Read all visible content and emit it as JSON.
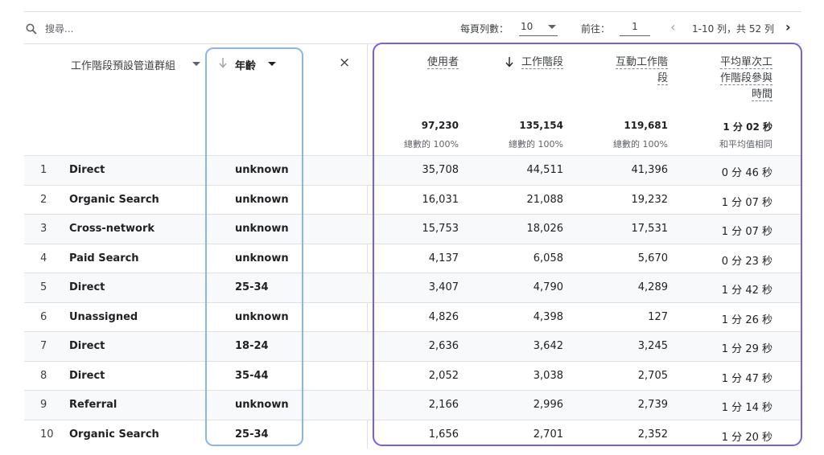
{
  "toolbar": {
    "search_placeholder": "搜尋...",
    "rows_per_page_label": "每頁列數：",
    "rows_per_page_value": "10",
    "goto_label": "前往：",
    "goto_value": "1",
    "range_text": "1-10 列，共 52 列"
  },
  "headers": {
    "channel": "工作階段預設管道群組",
    "age": "年齡",
    "close_symbol": "×",
    "users": "使用者",
    "sessions": "工作階段",
    "engaged_sessions_line1": "互動工作階",
    "engaged_sessions_line2": "段",
    "avg_time_line1": "平均單次工",
    "avg_time_line2": "作階段參與",
    "avg_time_line3": "時間"
  },
  "totals": {
    "users": "97,230",
    "users_sub": "總數的 100%",
    "sessions": "135,154",
    "sessions_sub": "總數的 100%",
    "engaged": "119,681",
    "engaged_sub": "總數的 100%",
    "avg_time": "1 分 02 秒",
    "avg_time_sub": "和平均值相同"
  },
  "rows": [
    {
      "idx": "1",
      "channel": "Direct",
      "age": "unknown",
      "users": "35,708",
      "sessions": "44,511",
      "engaged": "41,396",
      "time": "0 分 46 秒"
    },
    {
      "idx": "2",
      "channel": "Organic Search",
      "age": "unknown",
      "users": "16,031",
      "sessions": "21,088",
      "engaged": "19,232",
      "time": "1 分 07 秒"
    },
    {
      "idx": "3",
      "channel": "Cross-network",
      "age": "unknown",
      "users": "15,753",
      "sessions": "18,026",
      "engaged": "17,531",
      "time": "1 分 07 秒"
    },
    {
      "idx": "4",
      "channel": "Paid Search",
      "age": "unknown",
      "users": "4,137",
      "sessions": "6,058",
      "engaged": "5,670",
      "time": "0 分 23 秒"
    },
    {
      "idx": "5",
      "channel": "Direct",
      "age": "25-34",
      "users": "3,407",
      "sessions": "4,790",
      "engaged": "4,289",
      "time": "1 分 42 秒"
    },
    {
      "idx": "6",
      "channel": "Unassigned",
      "age": "unknown",
      "users": "4,826",
      "sessions": "4,398",
      "engaged": "127",
      "time": "1 分 26 秒"
    },
    {
      "idx": "7",
      "channel": "Direct",
      "age": "18-24",
      "users": "2,636",
      "sessions": "3,642",
      "engaged": "3,245",
      "time": "1 分 29 秒"
    },
    {
      "idx": "8",
      "channel": "Direct",
      "age": "35-44",
      "users": "2,052",
      "sessions": "3,038",
      "engaged": "2,705",
      "time": "1 分 47 秒"
    },
    {
      "idx": "9",
      "channel": "Referral",
      "age": "unknown",
      "users": "2,166",
      "sessions": "2,996",
      "engaged": "2,739",
      "time": "1 分 14 秒"
    },
    {
      "idx": "10",
      "channel": "Organic Search",
      "age": "25-34",
      "users": "1,656",
      "sessions": "2,701",
      "engaged": "2,352",
      "time": "1 分 20 秒"
    }
  ]
}
